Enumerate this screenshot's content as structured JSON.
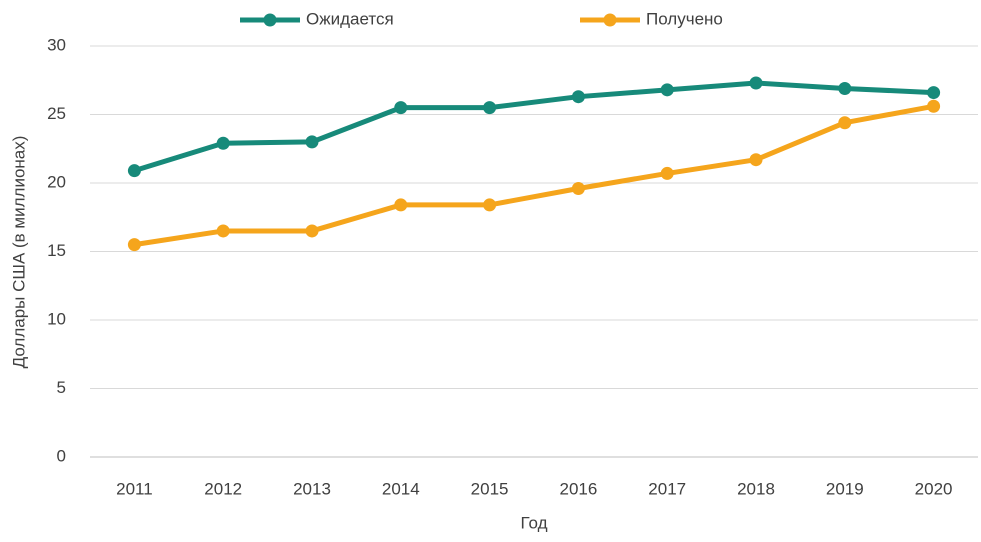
{
  "chart_data": {
    "type": "line",
    "x_label": "Год",
    "y_label": "Доллары США (в миллионах)",
    "categories": [
      "2011",
      "2012",
      "2013",
      "2014",
      "2015",
      "2016",
      "2017",
      "2018",
      "2019",
      "2020"
    ],
    "series": [
      {
        "name": "Ожидается",
        "color": "#178a7a",
        "values": [
          20.9,
          22.9,
          23,
          25.5,
          25.5,
          26.3,
          26.8,
          27.3,
          26.9,
          26.6
        ]
      },
      {
        "name": "Получено",
        "color": "#f5a51c",
        "values": [
          15.5,
          16.5,
          16.5,
          18.4,
          18.4,
          19.6,
          20.7,
          21.7,
          24.4,
          25.6
        ]
      }
    ],
    "ylim": [
      0,
      30
    ],
    "yticks": [
      0,
      5,
      10,
      15,
      20,
      25,
      30
    ],
    "grid": true,
    "legend": "top"
  }
}
